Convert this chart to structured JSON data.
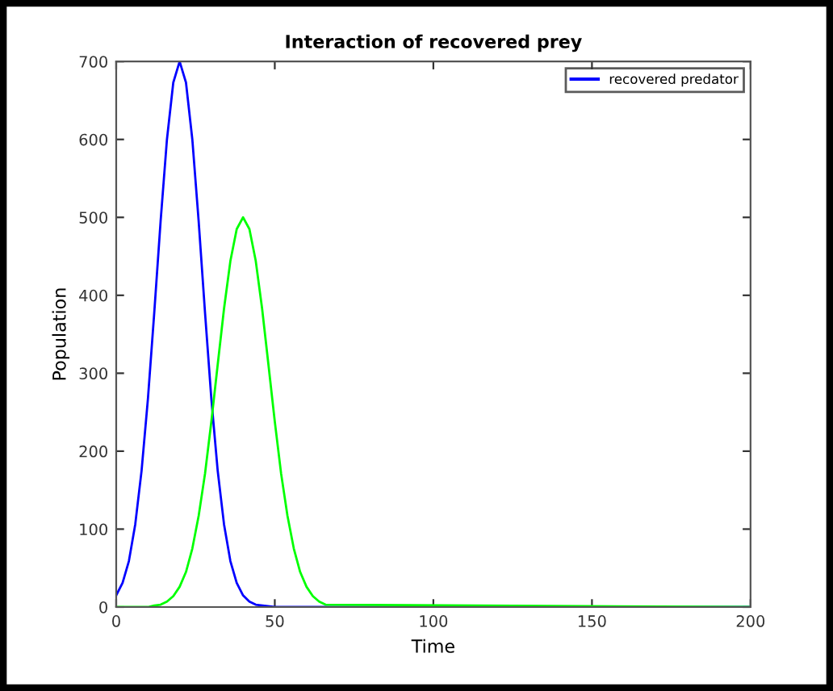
{
  "chart_data": {
    "type": "line",
    "title": "Interaction of recovered prey",
    "xlabel": "Time",
    "ylabel": "Population",
    "xlim": [
      0,
      200
    ],
    "xticks": [
      0,
      50,
      100,
      150,
      200
    ],
    "ylim": [
      0,
      700
    ],
    "yticks": [
      0,
      100,
      200,
      300,
      400,
      500,
      600,
      700
    ],
    "grid": false,
    "legend": "top right",
    "marker": "none",
    "line_style": "solid",
    "series": [
      {
        "name": "recovered predator",
        "color": "#0000ff",
        "x": [
          0,
          2,
          4,
          6,
          8,
          10,
          12,
          14,
          16,
          18,
          20,
          22,
          24,
          26,
          28,
          30,
          32,
          34,
          36,
          38,
          40,
          42,
          44,
          50,
          200
        ],
        "values": [
          15,
          31,
          59,
          106,
          175,
          267,
          378,
          495,
          600,
          673,
          700,
          673,
          600,
          495,
          378,
          267,
          175,
          106,
          59,
          31,
          15,
          7,
          3,
          0,
          0
        ]
      },
      {
        "color": "#00ff00",
        "x": [
          0,
          10,
          12,
          14,
          16,
          18,
          20,
          22,
          24,
          26,
          28,
          30,
          32,
          34,
          36,
          38,
          40,
          42,
          44,
          46,
          48,
          50,
          52,
          54,
          56,
          58,
          60,
          62,
          64,
          66,
          200
        ],
        "values": [
          0,
          0,
          2,
          3,
          7,
          14,
          26,
          45,
          75,
          117,
          171,
          238,
          311,
          383,
          444,
          485,
          500,
          485,
          444,
          383,
          311,
          238,
          171,
          117,
          75,
          45,
          26,
          14,
          7,
          3,
          0
        ]
      }
    ]
  }
}
